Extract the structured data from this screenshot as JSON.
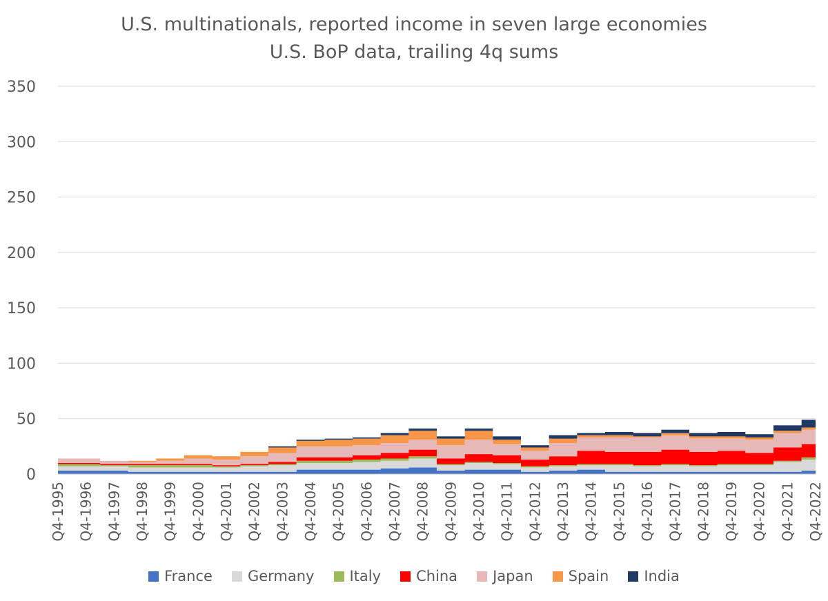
{
  "chart_data": {
    "type": "area",
    "stacked": true,
    "title": "U.S. multinationals, reported income in seven large economies",
    "subtitle": "U.S. BoP data, trailing 4q sums",
    "xlabel": "",
    "ylabel": "",
    "ylim": [
      0,
      350
    ],
    "yticks": [
      0,
      50,
      100,
      150,
      200,
      250,
      300,
      350
    ],
    "xtick_labels": [
      "Q4-1995",
      "Q4-1996",
      "Q4-1997",
      "Q4-1998",
      "Q4-1999",
      "Q4-2000",
      "Q4-2001",
      "Q4-2002",
      "Q4-2003",
      "Q4-2004",
      "Q4-2005",
      "Q4-2006",
      "Q4-2007",
      "Q4-2008",
      "Q4-2009",
      "Q4-2010",
      "Q4-2011",
      "Q4-2012",
      "Q4-2013",
      "Q4-2014",
      "Q4-2015",
      "Q4-2016",
      "Q4-2017",
      "Q4-2018",
      "Q4-2019",
      "Q4-2020",
      "Q4-2021",
      "Q4-2022"
    ],
    "grid": true,
    "legend_position": "bottom",
    "series": [
      {
        "name": "France",
        "color": "#4472C4",
        "values": [
          3,
          3,
          3,
          2,
          2,
          2,
          2,
          2,
          2,
          4,
          4,
          4,
          5,
          6,
          3,
          4,
          4,
          2,
          3,
          4,
          2,
          2,
          2,
          2,
          2,
          2,
          2,
          3
        ]
      },
      {
        "name": "Germany",
        "color": "#D9D9D9",
        "values": [
          4,
          4,
          4,
          4,
          4,
          4,
          4,
          5,
          6,
          6,
          6,
          7,
          7,
          8,
          5,
          6,
          5,
          4,
          4,
          4,
          6,
          5,
          6,
          5,
          6,
          6,
          9,
          10
        ]
      },
      {
        "name": "Italy",
        "color": "#9BBB59",
        "values": [
          2,
          2,
          1,
          2,
          2,
          2,
          1,
          1,
          1,
          2,
          2,
          2,
          2,
          2,
          1,
          1,
          1,
          1,
          1,
          1,
          1,
          1,
          1,
          1,
          1,
          1,
          1,
          2
        ]
      },
      {
        "name": "China",
        "color": "#FF0000",
        "values": [
          1,
          1,
          1,
          1,
          1,
          1,
          1,
          1,
          2,
          3,
          3,
          4,
          5,
          6,
          5,
          7,
          7,
          6,
          8,
          12,
          11,
          12,
          13,
          12,
          12,
          10,
          12,
          12
        ]
      },
      {
        "name": "Japan",
        "color": "#E6B9B8",
        "values": [
          4,
          4,
          3,
          2,
          3,
          5,
          5,
          7,
          8,
          10,
          10,
          9,
          9,
          9,
          12,
          13,
          10,
          8,
          12,
          12,
          13,
          13,
          13,
          12,
          11,
          12,
          13,
          13
        ]
      },
      {
        "name": "Spain",
        "color": "#F79646",
        "values": [
          0,
          0,
          0,
          1,
          2,
          3,
          3,
          4,
          5,
          5,
          6,
          6,
          7,
          8,
          6,
          8,
          4,
          3,
          4,
          2,
          2,
          1,
          2,
          2,
          2,
          2,
          2,
          2
        ]
      },
      {
        "name": "India",
        "color": "#1F3864",
        "values": [
          0,
          0,
          0,
          0,
          0,
          0,
          0,
          0,
          1,
          1,
          1,
          1,
          2,
          2,
          2,
          2,
          3,
          2,
          3,
          2,
          3,
          3,
          3,
          3,
          4,
          3,
          5,
          7
        ]
      }
    ]
  }
}
